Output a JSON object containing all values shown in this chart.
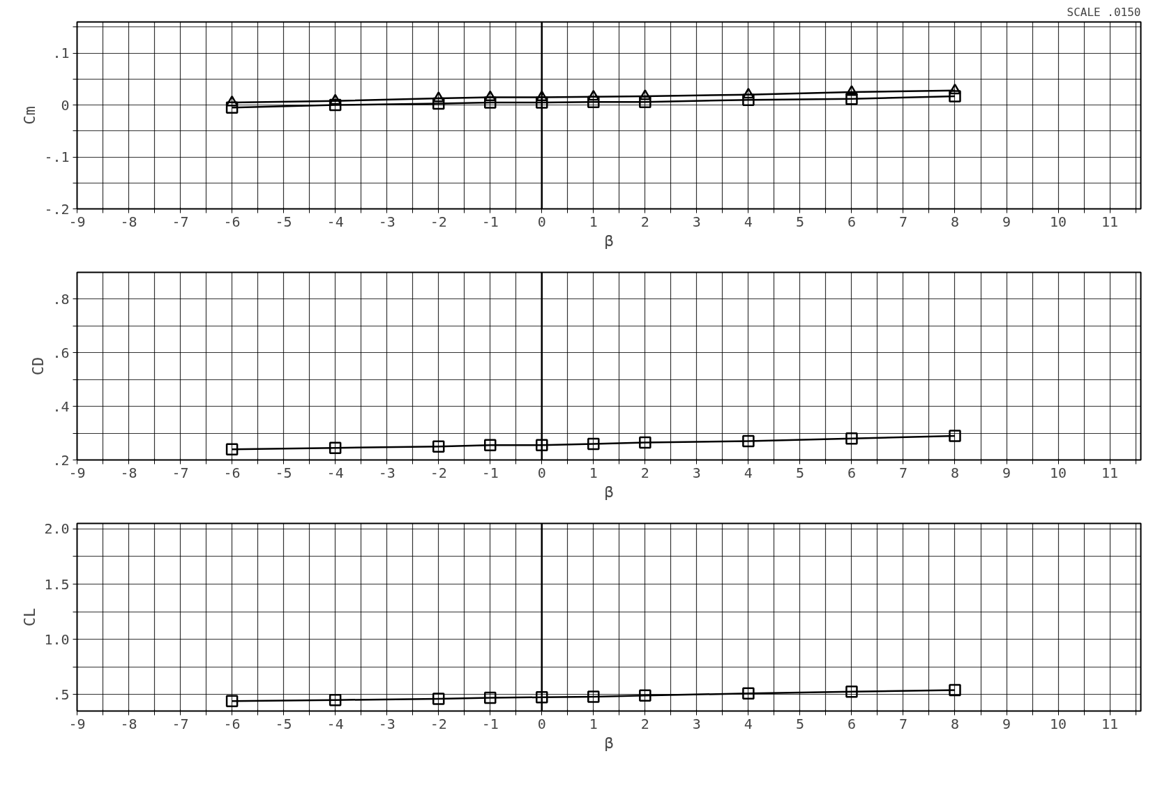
{
  "chart_data": [
    {
      "type": "line",
      "ylabel": "Cm",
      "xlabel": "β",
      "annotations": [
        "SCALE .0150"
      ],
      "x": [
        -6,
        -4,
        -2,
        -1,
        0,
        1,
        2,
        4,
        6,
        8
      ],
      "series": [
        {
          "color": "#000000",
          "marker": "triangle",
          "values": [
            0.005,
            0.008,
            0.013,
            0.015,
            0.015,
            0.016,
            0.017,
            0.02,
            0.025,
            0.028
          ]
        },
        {
          "color": "#000000",
          "marker": "square",
          "values": [
            -0.005,
            0.0,
            0.003,
            0.005,
            0.005,
            0.006,
            0.006,
            0.01,
            0.012,
            0.017
          ]
        }
      ],
      "xlim": [
        -9,
        11.6
      ],
      "ylim": [
        -0.2,
        0.16
      ],
      "xticks": [
        -9,
        {
          "value": -8.5,
          "label": null
        },
        -8,
        {
          "value": -7.5,
          "label": null
        },
        -7,
        {
          "value": -6.5,
          "label": null
        },
        -6,
        {
          "value": -5.5,
          "label": null
        },
        -5,
        {
          "value": -4.5,
          "label": null
        },
        -4,
        {
          "value": -3.5,
          "label": null
        },
        -3,
        {
          "value": -2.5,
          "label": null
        },
        -2,
        {
          "value": -1.5,
          "label": null
        },
        -1,
        {
          "value": -0.5,
          "label": null
        },
        0,
        {
          "value": 0.5,
          "label": null
        },
        1,
        {
          "value": 1.5,
          "label": null
        },
        2,
        {
          "value": 2.5,
          "label": null
        },
        3,
        {
          "value": 3.5,
          "label": null
        },
        4,
        {
          "value": 4.5,
          "label": null
        },
        5,
        {
          "value": 5.5,
          "label": null
        },
        6,
        {
          "value": 6.5,
          "label": null
        },
        7,
        {
          "value": 7.5,
          "label": null
        },
        8,
        {
          "value": 8.5,
          "label": null
        },
        9,
        {
          "value": 9.5,
          "label": null
        },
        10,
        {
          "value": 10.5,
          "label": null
        },
        11,
        {
          "value": 11.5,
          "label": null
        }
      ],
      "yticks": [
        {
          "value": -0.2,
          "label": "-.2"
        },
        {
          "value": -0.15,
          "label": null
        },
        {
          "value": -0.1,
          "label": "-.1"
        },
        {
          "value": -0.05,
          "label": null
        },
        0,
        {
          "value": 0.05,
          "label": null
        },
        {
          "value": 0.1,
          "label": ".1"
        },
        {
          "value": 0.15,
          "label": null
        }
      ],
      "ref_lines": [
        {
          "axis": "x",
          "value": 0,
          "color": "#000000"
        }
      ],
      "grid": true,
      "line_style": "solid"
    },
    {
      "type": "line",
      "ylabel": "CD",
      "xlabel": "β",
      "x": [
        -6,
        -4,
        -2,
        -1,
        0,
        1,
        2,
        4,
        6,
        8
      ],
      "series": [
        {
          "color": "#000000",
          "marker": "square",
          "values": [
            0.24,
            0.245,
            0.25,
            0.255,
            0.255,
            0.26,
            0.265,
            0.27,
            0.28,
            0.29
          ]
        }
      ],
      "xlim": [
        -9,
        11.6
      ],
      "ylim": [
        0.2,
        0.9
      ],
      "xticks": [
        -9,
        {
          "value": -8.5,
          "label": null
        },
        -8,
        {
          "value": -7.5,
          "label": null
        },
        -7,
        {
          "value": -6.5,
          "label": null
        },
        -6,
        {
          "value": -5.5,
          "label": null
        },
        -5,
        {
          "value": -4.5,
          "label": null
        },
        -4,
        {
          "value": -3.5,
          "label": null
        },
        -3,
        {
          "value": -2.5,
          "label": null
        },
        -2,
        {
          "value": -1.5,
          "label": null
        },
        -1,
        {
          "value": -0.5,
          "label": null
        },
        0,
        {
          "value": 0.5,
          "label": null
        },
        1,
        {
          "value": 1.5,
          "label": null
        },
        2,
        {
          "value": 2.5,
          "label": null
        },
        3,
        {
          "value": 3.5,
          "label": null
        },
        4,
        {
          "value": 4.5,
          "label": null
        },
        5,
        {
          "value": 5.5,
          "label": null
        },
        6,
        {
          "value": 6.5,
          "label": null
        },
        7,
        {
          "value": 7.5,
          "label": null
        },
        8,
        {
          "value": 8.5,
          "label": null
        },
        9,
        {
          "value": 9.5,
          "label": null
        },
        10,
        {
          "value": 10.5,
          "label": null
        },
        11,
        {
          "value": 11.5,
          "label": null
        }
      ],
      "yticks": [
        {
          "value": 0.2,
          "label": ".2"
        },
        {
          "value": 0.3,
          "label": null
        },
        {
          "value": 0.4,
          "label": ".4"
        },
        {
          "value": 0.5,
          "label": null
        },
        {
          "value": 0.6,
          "label": ".6"
        },
        {
          "value": 0.7,
          "label": null
        },
        {
          "value": 0.8,
          "label": ".8"
        }
      ],
      "ref_lines": [
        {
          "axis": "x",
          "value": 0,
          "color": "#000000"
        }
      ],
      "grid": true,
      "line_style": "solid"
    },
    {
      "type": "line",
      "ylabel": "CL",
      "xlabel": "β",
      "x": [
        -6,
        -4,
        -2,
        -1,
        0,
        1,
        2,
        4,
        6,
        8
      ],
      "series": [
        {
          "color": "#000000",
          "marker": "square",
          "values": [
            0.44,
            0.45,
            0.46,
            0.47,
            0.475,
            0.48,
            0.49,
            0.51,
            0.525,
            0.54
          ]
        }
      ],
      "xlim": [
        -9,
        11.6
      ],
      "ylim": [
        0.35,
        2.05
      ],
      "xticks": [
        -9,
        {
          "value": -8.5,
          "label": null
        },
        -8,
        {
          "value": -7.5,
          "label": null
        },
        -7,
        {
          "value": -6.5,
          "label": null
        },
        -6,
        {
          "value": -5.5,
          "label": null
        },
        -5,
        {
          "value": -4.5,
          "label": null
        },
        -4,
        {
          "value": -3.5,
          "label": null
        },
        -3,
        {
          "value": -2.5,
          "label": null
        },
        -2,
        {
          "value": -1.5,
          "label": null
        },
        -1,
        {
          "value": -0.5,
          "label": null
        },
        0,
        {
          "value": 0.5,
          "label": null
        },
        1,
        {
          "value": 1.5,
          "label": null
        },
        2,
        {
          "value": 2.5,
          "label": null
        },
        3,
        {
          "value": 3.5,
          "label": null
        },
        4,
        {
          "value": 4.5,
          "label": null
        },
        5,
        {
          "value": 5.5,
          "label": null
        },
        6,
        {
          "value": 6.5,
          "label": null
        },
        7,
        {
          "value": 7.5,
          "label": null
        },
        8,
        {
          "value": 8.5,
          "label": null
        },
        9,
        {
          "value": 9.5,
          "label": null
        },
        10,
        {
          "value": 10.5,
          "label": null
        },
        11,
        {
          "value": 11.5,
          "label": null
        }
      ],
      "yticks": [
        {
          "value": 0.5,
          "label": ".5"
        },
        {
          "value": 0.75,
          "label": null
        },
        {
          "value": 1.0,
          "label": "1.0"
        },
        {
          "value": 1.25,
          "label": null
        },
        {
          "value": 1.5,
          "label": "1.5"
        },
        {
          "value": 1.75,
          "label": null
        },
        {
          "value": 2.0,
          "label": "2.0"
        }
      ],
      "ref_lines": [
        {
          "axis": "x",
          "value": 0,
          "color": "#000000"
        }
      ],
      "grid": true,
      "line_style": "solid"
    }
  ]
}
